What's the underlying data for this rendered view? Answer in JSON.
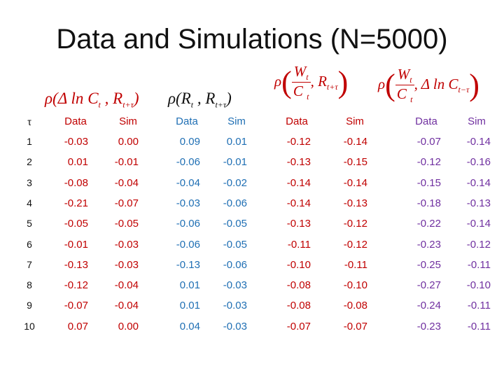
{
  "title": "Data and Simulations (N=5000)",
  "col_label_data": "Data",
  "col_label_sim": "Sim",
  "tau_label": "τ",
  "colors": {
    "rank": "#111111",
    "group1": "#c00000",
    "group2": "#1f6fb4",
    "group3": "#c00000",
    "group4": "#7030a0"
  },
  "rows": [
    {
      "tau": "1",
      "v": [
        "-0.03",
        "0.00",
        "0.09",
        "0.01",
        "-0.12",
        "-0.14",
        "-0.07",
        "-0.14"
      ]
    },
    {
      "tau": "2",
      "v": [
        "0.01",
        "-0.01",
        "-0.06",
        "-0.01",
        "-0.13",
        "-0.15",
        "-0.12",
        "-0.16"
      ]
    },
    {
      "tau": "3",
      "v": [
        "-0.08",
        "-0.04",
        "-0.04",
        "-0.02",
        "-0.14",
        "-0.14",
        "-0.15",
        "-0.14"
      ]
    },
    {
      "tau": "4",
      "v": [
        "-0.21",
        "-0.07",
        "-0.03",
        "-0.06",
        "-0.14",
        "-0.13",
        "-0.18",
        "-0.13"
      ]
    },
    {
      "tau": "5",
      "v": [
        "-0.05",
        "-0.05",
        "-0.06",
        "-0.05",
        "-0.13",
        "-0.12",
        "-0.22",
        "-0.14"
      ]
    },
    {
      "tau": "6",
      "v": [
        "-0.01",
        "-0.03",
        "-0.06",
        "-0.05",
        "-0.11",
        "-0.12",
        "-0.23",
        "-0.12"
      ]
    },
    {
      "tau": "7",
      "v": [
        "-0.13",
        "-0.03",
        "-0.13",
        "-0.06",
        "-0.10",
        "-0.11",
        "-0.25",
        "-0.11"
      ]
    },
    {
      "tau": "8",
      "v": [
        "-0.12",
        "-0.04",
        "0.01",
        "-0.03",
        "-0.08",
        "-0.10",
        "-0.27",
        "-0.10"
      ]
    },
    {
      "tau": "9",
      "v": [
        "-0.07",
        "-0.04",
        "0.01",
        "-0.03",
        "-0.08",
        "-0.08",
        "-0.24",
        "-0.11"
      ]
    },
    {
      "tau": "10",
      "v": [
        "0.07",
        "0.00",
        "0.04",
        "-0.03",
        "-0.07",
        "-0.07",
        "-0.23",
        "-0.11"
      ]
    }
  ]
}
